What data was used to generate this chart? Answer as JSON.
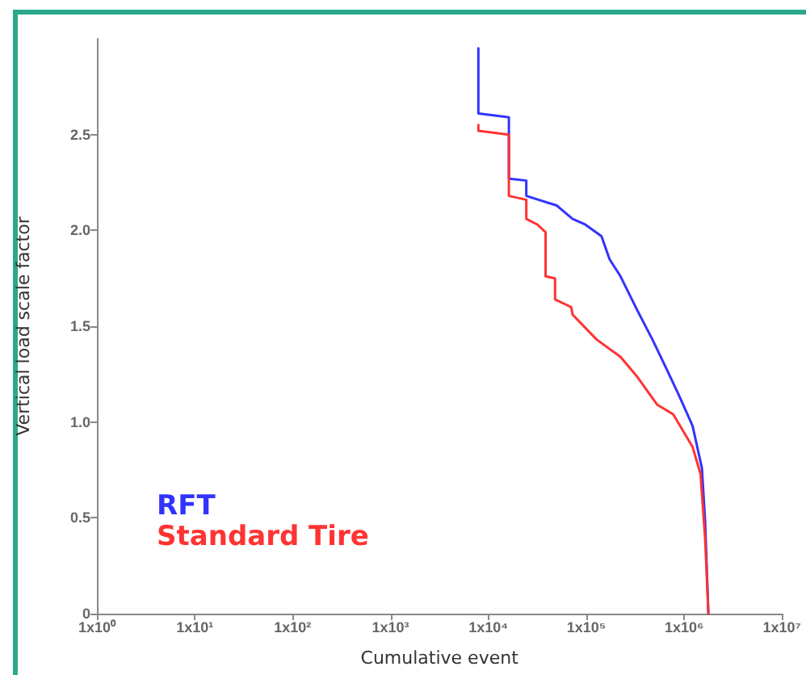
{
  "chart_data": {
    "type": "line",
    "xlabel": "Cumulative event",
    "ylabel": "Vertical load scale factor",
    "log": "x",
    "xlim": [
      1,
      10000000
    ],
    "ylim": [
      0,
      3
    ],
    "xticks": [
      {
        "value": 1,
        "label": "1x10⁰"
      },
      {
        "value": 10,
        "label": "1x10¹"
      },
      {
        "value": 100,
        "label": "1x10²"
      },
      {
        "value": 1000,
        "label": "1x10³"
      },
      {
        "value": 10000,
        "label": "1x10⁴"
      },
      {
        "value": 100000,
        "label": "1x10⁵"
      },
      {
        "value": 1000000,
        "label": "1x10⁶"
      },
      {
        "value": 10000000,
        "label": "1x10⁷"
      }
    ],
    "yticks": [
      0,
      0.5,
      {
        "value": 1,
        "label": "1.0"
      },
      1.5,
      {
        "value": 2,
        "label": "2.0"
      },
      2.5
    ],
    "grid": false,
    "legend": "bottom left",
    "marker": "none",
    "line_style": "solid",
    "series": [
      {
        "name": "RFT",
        "color": "#3333ff",
        "x": [
          7900,
          7900,
          16200,
          16200,
          24400,
          24400,
          49900,
          72600,
          98000,
          143000,
          173000,
          224000,
          327000,
          475000,
          643000,
          867000,
          1220000,
          1520000,
          1640000,
          1770000
        ],
        "values": [
          2.95,
          2.61,
          2.59,
          2.27,
          2.26,
          2.18,
          2.13,
          2.06,
          2.03,
          1.97,
          1.85,
          1.76,
          1.59,
          1.43,
          1.29,
          1.15,
          0.98,
          0.76,
          0.48,
          0
        ]
      },
      {
        "name": "Standard Tire",
        "color": "#ff3333",
        "x": [
          7900,
          7900,
          16200,
          16200,
          24400,
          24400,
          31800,
          38400,
          38400,
          48000,
          48000,
          70000,
          72600,
          128000,
          224000,
          327000,
          532000,
          775000,
          1220000,
          1470000,
          1640000,
          1770000
        ],
        "values": [
          2.55,
          2.52,
          2.5,
          2.18,
          2.16,
          2.06,
          2.03,
          1.99,
          1.76,
          1.75,
          1.64,
          1.6,
          1.56,
          1.43,
          1.34,
          1.24,
          1.09,
          1.04,
          0.87,
          0.73,
          0.39,
          0
        ]
      }
    ]
  }
}
